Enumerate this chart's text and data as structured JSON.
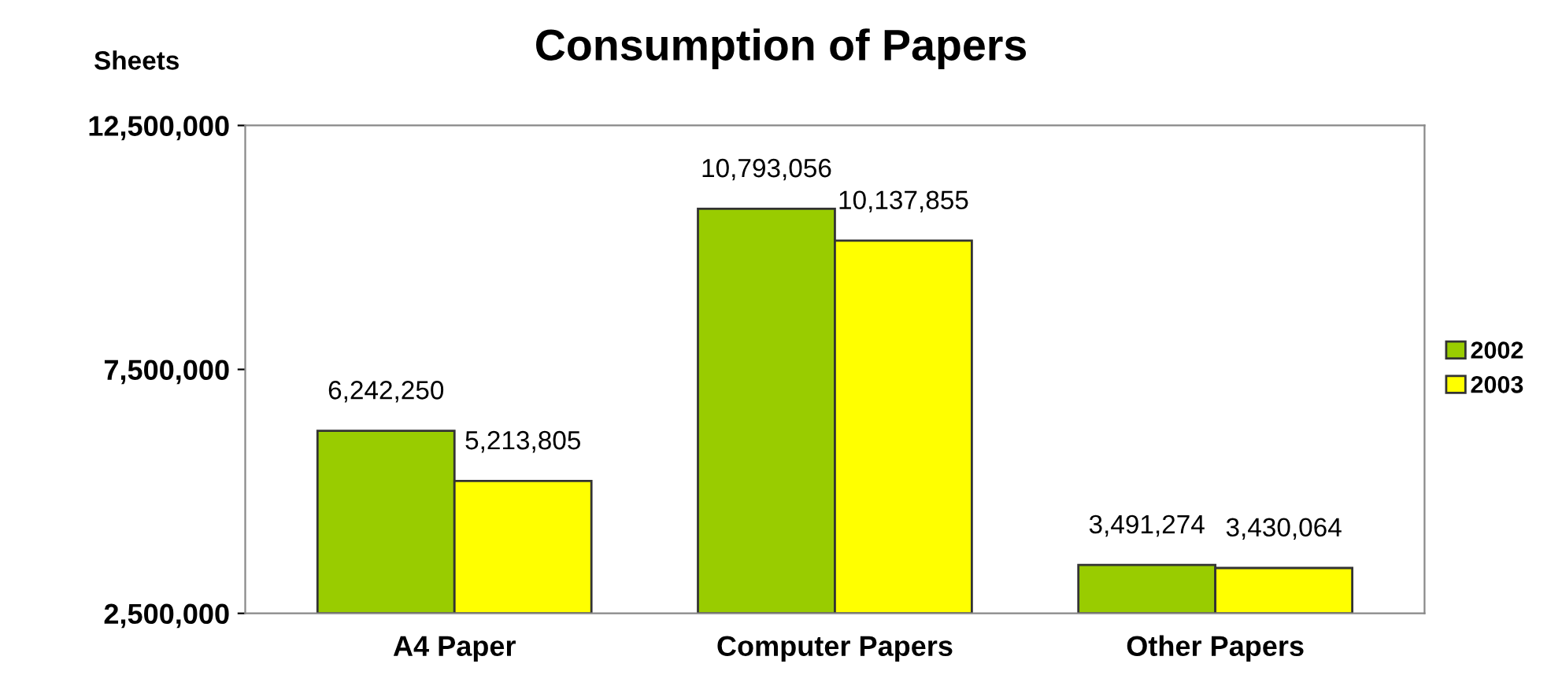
{
  "chart_data": {
    "type": "bar",
    "title": "Consumption of Papers",
    "ylabel": "Sheets",
    "categories": [
      "A4 Paper",
      "Computer Papers",
      "Other Papers"
    ],
    "series": [
      {
        "name": "2002",
        "color": "#99cc00",
        "values": [
          6242250,
          10793056,
          3491274
        ],
        "value_labels": [
          "6,242,250",
          "10,793,056",
          "3,491,274"
        ]
      },
      {
        "name": "2003",
        "color": "#ffff00",
        "values": [
          5213805,
          10137855,
          3430064
        ],
        "value_labels": [
          "5,213,805",
          "10,137,855",
          "3,430,064"
        ]
      }
    ],
    "ylim": [
      2500000,
      12500000
    ],
    "yticks": [
      {
        "value": 2500000,
        "label": "2,500,000"
      },
      {
        "value": 7500000,
        "label": "7,500,000"
      },
      {
        "value": 12500000,
        "label": "12,500,000"
      }
    ],
    "grid": false,
    "legend": "right"
  }
}
